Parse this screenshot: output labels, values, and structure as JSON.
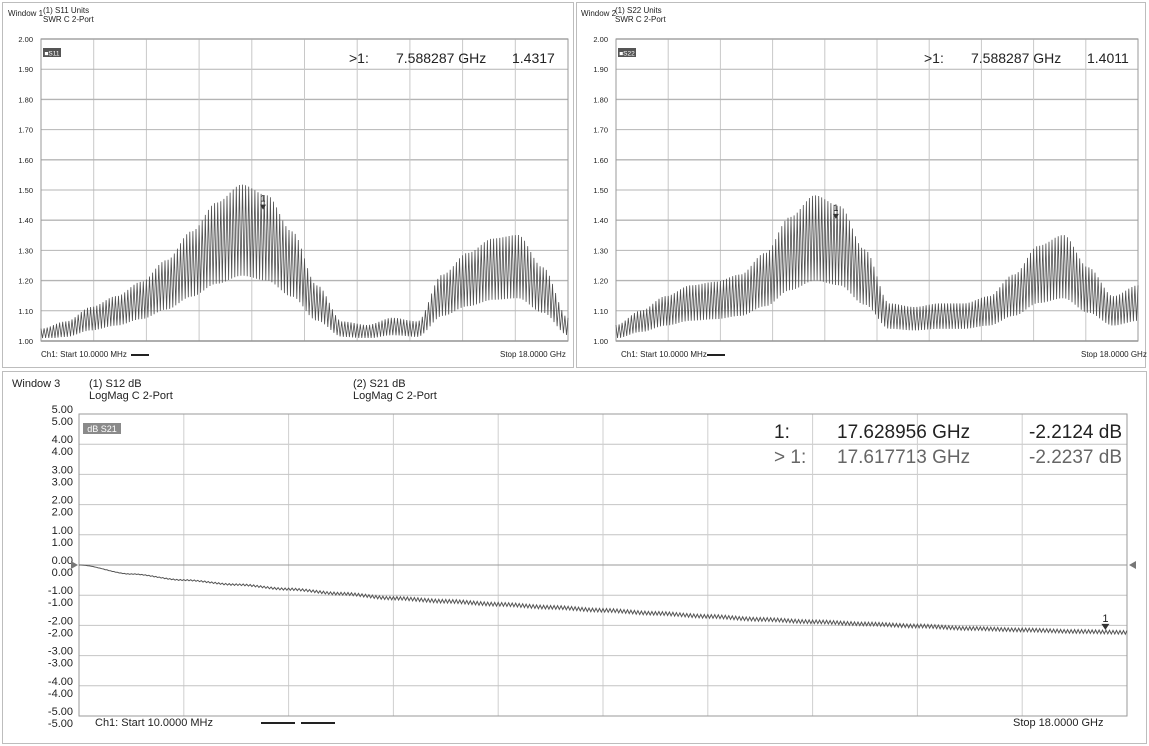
{
  "windows": [
    {
      "window_label": "Window 1",
      "trace_header": "(1) S11 Units",
      "format_header": "SWR C  2-Port",
      "trace_tag": "■S11",
      "marker_row": {
        "prefix": ">1:",
        "freq": "7.588287 GHz",
        "value": "1.4317"
      },
      "marker_label": "1",
      "start_label": "Ch1: Start  10.0000 MHz",
      "stop_label": "Stop  18.0000 GHz",
      "ytick_labels": [
        "2.00",
        "1.90",
        "1.80",
        "1.70",
        "1.60",
        "1.50",
        "1.40",
        "1.30",
        "1.20",
        "1.10",
        "1.00"
      ]
    },
    {
      "window_label": "Window 2",
      "trace_header": "(1) S22 Units",
      "format_header": "SWR C  2-Port",
      "trace_tag": "■S22",
      "marker_row": {
        "prefix": ">1:",
        "freq": "7.588287 GHz",
        "value": "1.4011"
      },
      "marker_label": "1",
      "start_label": "Ch1: Start  10.0000 MHz",
      "stop_label": "Stop  18.0000 GHz",
      "ytick_labels": [
        "2.00",
        "1.90",
        "1.80",
        "1.70",
        "1.60",
        "1.50",
        "1.40",
        "1.30",
        "1.20",
        "1.10",
        "1.00"
      ]
    },
    {
      "window_label": "Window 3",
      "trace1_header": "(1) S12 dB",
      "trace1_format": "LogMag C  2-Port",
      "trace2_header": "(2) S21 dB",
      "trace2_format": "LogMag C  2-Port",
      "trace_tag": "dB S21",
      "marker_rows": [
        {
          "prefix": "1:",
          "freq": "17.628956 GHz",
          "value": "-2.2124 dB"
        },
        {
          "prefix": "> 1:",
          "freq": "17.617713 GHz",
          "value": "-2.2237 dB"
        }
      ],
      "marker_label": "1",
      "start_label": "Ch1: Start  10.0000 MHz",
      "stop_label": "Stop  18.0000 GHz",
      "ytick_labels_a": [
        "5.00",
        "4.00",
        "3.00",
        "2.00",
        "1.00",
        "0.00",
        "-1.00",
        "-2.00",
        "-3.00",
        "-4.00",
        "-5.00"
      ],
      "ytick_labels_b": [
        "5.00",
        "4.00",
        "3.00",
        "2.00",
        "1.00",
        "0.00",
        "-1.00",
        "-2.00",
        "-3.00",
        "-4.00",
        "-5.00"
      ]
    }
  ],
  "chart_data": [
    {
      "type": "line",
      "series": [
        {
          "values": [
            1.03,
            1.05,
            1.09,
            1.12,
            1.16,
            1.22,
            1.3,
            1.38,
            1.43,
            1.4,
            1.3,
            1.15,
            1.05,
            1.04,
            1.06,
            1.05,
            1.18,
            1.24,
            1.28,
            1.29,
            1.2,
            1.06
          ]
        }
      ],
      "x_range_ghz": [
        0.01,
        18.0
      ],
      "ylim": [
        1.0,
        2.0
      ],
      "xlabel": "",
      "ylabel": "",
      "marker": {
        "freq_ghz": 7.588287,
        "value": 1.4317
      },
      "grid": true
    },
    {
      "type": "line",
      "series": [
        {
          "values": [
            1.04,
            1.08,
            1.12,
            1.15,
            1.16,
            1.18,
            1.24,
            1.34,
            1.4,
            1.37,
            1.25,
            1.1,
            1.09,
            1.1,
            1.1,
            1.12,
            1.18,
            1.26,
            1.29,
            1.2,
            1.12,
            1.15
          ]
        }
      ],
      "x_range_ghz": [
        0.01,
        18.0
      ],
      "ylim": [
        1.0,
        2.0
      ],
      "xlabel": "",
      "ylabel": "",
      "marker": {
        "freq_ghz": 7.588287,
        "value": 1.4011
      },
      "grid": true
    },
    {
      "type": "line",
      "series": [
        {
          "values": [
            0.0,
            -0.3,
            -0.5,
            -0.65,
            -0.8,
            -0.95,
            -1.1,
            -1.2,
            -1.3,
            -1.4,
            -1.5,
            -1.6,
            -1.7,
            -1.8,
            -1.88,
            -1.95,
            -2.02,
            -2.1,
            -2.15,
            -2.2,
            -2.23
          ]
        }
      ],
      "x_range_ghz": [
        0.01,
        18.0
      ],
      "ylim": [
        -5.0,
        5.0
      ],
      "xlabel": "",
      "ylabel": "",
      "markers": [
        {
          "freq_ghz": 17.628956,
          "value": -2.2124
        },
        {
          "freq_ghz": 17.617713,
          "value": -2.2237
        }
      ],
      "grid": true
    }
  ]
}
